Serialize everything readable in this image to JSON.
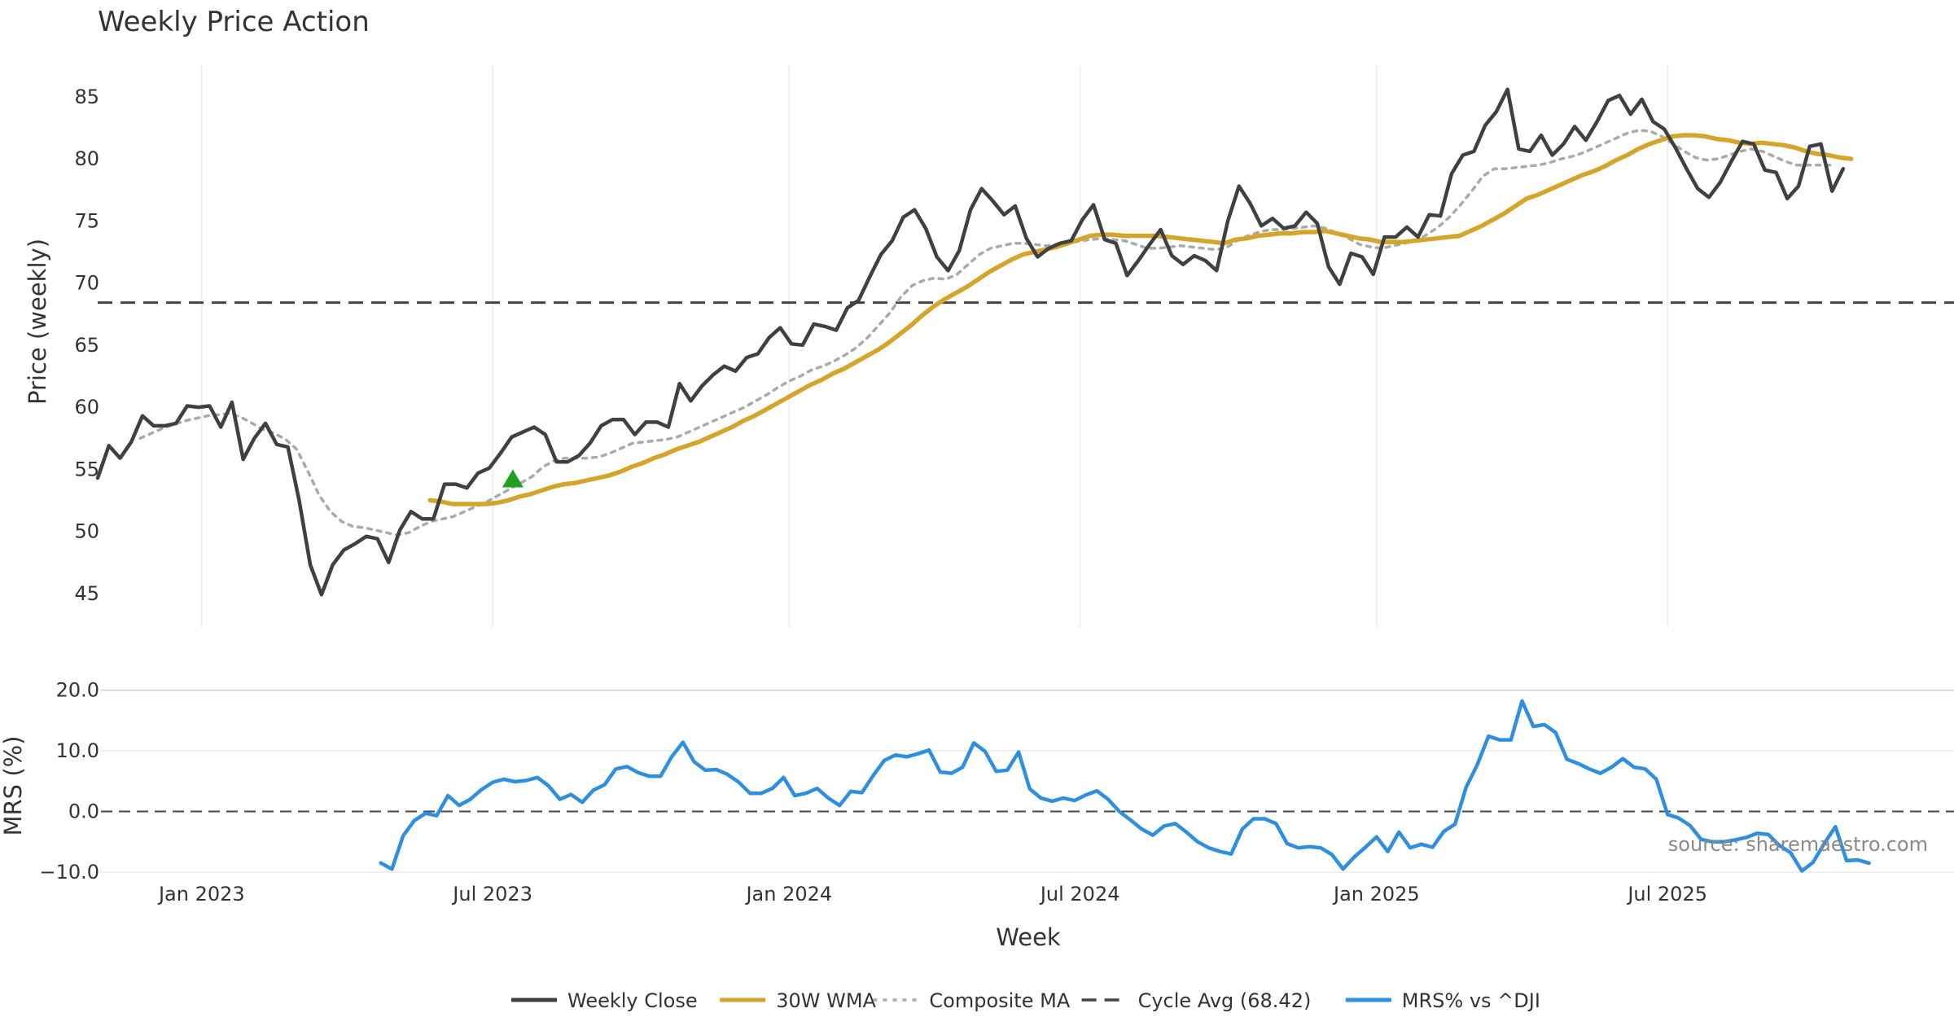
{
  "chart_data": {
    "type": "line",
    "title": "Weekly Price Action",
    "source_note": "source: sharemaestro.com",
    "xlabel": "Week",
    "x_ticks": [
      "Jan 2023",
      "Jul 2023",
      "Jan 2024",
      "Jul 2024",
      "Jan 2025",
      "Jul 2025"
    ],
    "x_tick_weeks": [
      6,
      32,
      58.5,
      84.5,
      111,
      137
    ],
    "x_range_weeks": [
      -3.3,
      162.6
    ],
    "price_panel": {
      "ylabel": "Price (weekly)",
      "ylim": [
        42.3,
        88.2
      ],
      "y_ticks": [
        "45",
        "50",
        "55",
        "60",
        "65",
        "70",
        "75",
        "80",
        "85"
      ],
      "y_tick_values": [
        45,
        50,
        55,
        60,
        65,
        70,
        75,
        80,
        85
      ],
      "series": [
        {
          "name": "Weekly Close",
          "color": "#404040",
          "start_week": -3.3,
          "values": [
            54.3,
            56.9,
            55.9,
            57.2,
            59.3,
            58.5,
            58.5,
            58.7,
            60.1,
            60.0,
            60.1,
            58.4,
            60.4,
            55.8,
            57.5,
            58.7,
            57.0,
            56.8,
            52.5,
            47.3,
            44.9,
            47.3,
            48.5,
            49.0,
            49.6,
            49.4,
            47.5,
            50.1,
            51.6,
            51.0,
            51.0,
            53.8,
            53.8,
            53.5,
            54.7,
            55.1,
            56.3,
            57.6,
            58.0,
            58.4,
            57.8,
            55.6,
            55.6,
            56.1,
            57.1,
            58.5,
            59.0,
            59.0,
            57.8,
            58.8,
            58.8,
            58.4,
            61.9,
            60.5,
            61.7,
            62.6,
            63.3,
            62.9,
            64.0,
            64.3,
            65.6,
            66.4,
            65.1,
            65.0,
            66.7,
            66.5,
            66.2,
            68.0,
            68.6,
            70.5,
            72.3,
            73.4,
            75.3,
            75.9,
            74.4,
            72.1,
            71.0,
            72.6,
            75.9,
            77.6,
            76.6,
            75.5,
            76.2,
            73.6,
            72.1,
            72.8,
            73.2,
            73.4,
            75.1,
            76.3,
            73.5,
            73.2,
            70.6,
            71.8,
            73.1,
            74.3,
            72.2,
            71.5,
            72.2,
            71.8,
            71.0,
            75.0,
            77.8,
            76.4,
            74.6,
            75.2,
            74.4,
            74.6,
            75.7,
            74.8,
            71.3,
            69.9,
            72.4,
            72.1,
            70.7,
            73.7,
            73.7,
            74.5,
            73.7,
            75.5,
            75.4,
            78.8,
            80.3,
            80.6,
            82.7,
            83.8,
            85.6,
            80.8,
            80.6,
            81.9,
            80.3,
            81.2,
            82.6,
            81.5,
            83.0,
            84.7,
            85.1,
            83.6,
            84.8,
            83.0,
            82.4,
            80.9,
            79.2,
            77.6,
            76.9,
            78.1,
            79.8,
            81.4,
            81.2,
            79.1,
            78.9,
            76.8,
            77.8,
            81.0,
            81.2,
            77.4,
            79.2
          ]
        },
        {
          "name": "30W WMA",
          "color": "#D4A52A",
          "start_week": 26.4,
          "values": [
            52.5,
            52.4,
            52.2,
            52.2,
            52.2,
            52.2,
            52.3,
            52.5,
            52.8,
            53.0,
            53.3,
            53.6,
            53.8,
            53.9,
            54.1,
            54.3,
            54.5,
            54.8,
            55.2,
            55.5,
            55.9,
            56.2,
            56.6,
            56.9,
            57.2,
            57.6,
            58.0,
            58.4,
            58.9,
            59.3,
            59.8,
            60.3,
            60.8,
            61.3,
            61.8,
            62.2,
            62.7,
            63.1,
            63.6,
            64.1,
            64.6,
            65.2,
            65.9,
            66.6,
            67.4,
            68.1,
            68.7,
            69.2,
            69.7,
            70.3,
            70.9,
            71.4,
            71.9,
            72.3,
            72.5,
            72.7,
            72.9,
            73.2,
            73.5,
            73.8,
            73.9,
            73.9,
            73.8,
            73.8,
            73.8,
            73.8,
            73.7,
            73.6,
            73.5,
            73.4,
            73.3,
            73.2,
            73.5,
            73.6,
            73.8,
            73.9,
            74.0,
            74.0,
            74.1,
            74.1,
            74.2,
            74.0,
            73.8,
            73.6,
            73.5,
            73.3,
            73.3,
            73.3,
            73.4,
            73.5,
            73.6,
            73.7,
            73.8,
            74.2,
            74.6,
            75.1,
            75.6,
            76.2,
            76.8,
            77.1,
            77.5,
            77.9,
            78.3,
            78.7,
            79.0,
            79.4,
            79.9,
            80.3,
            80.8,
            81.2,
            81.5,
            81.8,
            81.9,
            81.9,
            81.8,
            81.6,
            81.5,
            81.3,
            81.2,
            81.3,
            81.2,
            81.1,
            80.9,
            80.6,
            80.4,
            80.3,
            80.1,
            80.0
          ]
        },
        {
          "name": "Composite MA",
          "color": "#AAAAAA",
          "start_week": 0.5,
          "values": [
            57.5,
            57.9,
            58.3,
            58.6,
            58.9,
            59.1,
            59.3,
            59.4,
            59.5,
            59.2,
            58.7,
            58.2,
            57.9,
            57.4,
            56.6,
            54.8,
            52.9,
            51.6,
            50.8,
            50.4,
            50.3,
            50.1,
            49.9,
            49.7,
            49.9,
            50.4,
            50.8,
            51.0,
            51.2,
            51.6,
            52.0,
            52.4,
            52.9,
            53.4,
            53.9,
            54.4,
            55.2,
            55.7,
            55.9,
            55.9,
            55.9,
            56.0,
            56.3,
            56.7,
            57.1,
            57.2,
            57.3,
            57.4,
            57.6,
            58.0,
            58.4,
            58.8,
            59.2,
            59.6,
            60.0,
            60.5,
            61.0,
            61.6,
            62.1,
            62.5,
            63.0,
            63.3,
            63.7,
            64.2,
            64.8,
            65.6,
            66.6,
            67.6,
            68.9,
            69.8,
            70.2,
            70.4,
            70.3,
            70.7,
            71.5,
            72.3,
            72.8,
            73.0,
            73.2,
            73.2,
            73.1,
            73.0,
            73.1,
            73.2,
            73.4,
            73.5,
            73.6,
            73.5,
            73.4,
            73.1,
            72.8,
            72.8,
            72.9,
            73.0,
            72.9,
            72.8,
            72.7,
            72.8,
            73.4,
            73.8,
            74.1,
            74.3,
            74.3,
            74.4,
            74.5,
            74.6,
            74.4,
            74.0,
            73.6,
            73.1,
            72.9,
            72.8,
            73.0,
            73.2,
            73.4,
            73.9,
            74.5,
            75.3,
            76.3,
            77.4,
            78.6,
            79.2,
            79.2,
            79.3,
            79.4,
            79.5,
            79.7,
            80.0,
            80.2,
            80.5,
            80.9,
            81.3,
            81.7,
            82.1,
            82.3,
            82.2,
            81.8,
            81.2,
            80.6,
            80.1,
            79.9,
            80.0,
            80.3,
            80.6,
            80.8,
            80.6,
            80.2,
            79.8,
            79.5,
            79.5,
            79.5,
            79.5
          ]
        },
        {
          "name": "Cycle Avg (68.42)",
          "color": "#444444",
          "constant": 68.42
        }
      ],
      "annotations": [
        {
          "type": "marker-up",
          "label": "",
          "week": 33.8,
          "value": 54.2,
          "color": "#1FA01F"
        }
      ]
    },
    "mrs_panel": {
      "ylabel": "MRS (%)",
      "ylim": [
        -11.2,
        21.0
      ],
      "y_ticks": [
        "20.0",
        "10.0",
        "0.0",
        "−10.0"
      ],
      "y_tick_values": [
        20,
        10,
        0,
        -10
      ],
      "zero_line": 0,
      "series": [
        {
          "name": "MRS% vs ^DJI",
          "color": "#2E8FE0",
          "start_week": 22.0,
          "values": [
            -8.5,
            -9.5,
            -4.0,
            -1.5,
            -0.3,
            -0.7,
            2.6,
            1.0,
            2.0,
            3.6,
            4.8,
            5.3,
            4.9,
            5.1,
            5.6,
            4.2,
            2.0,
            2.8,
            1.5,
            3.5,
            4.4,
            7.0,
            7.4,
            6.4,
            5.8,
            5.8,
            9.0,
            11.4,
            8.2,
            6.8,
            6.9,
            6.1,
            4.8,
            3.0,
            3.0,
            3.8,
            5.6,
            2.6,
            3.0,
            3.8,
            2.2,
            1.0,
            3.3,
            3.1,
            5.9,
            8.4,
            9.3,
            9.0,
            9.5,
            10.1,
            6.5,
            6.3,
            7.3,
            11.3,
            9.9,
            6.6,
            6.8,
            9.8,
            3.7,
            2.2,
            1.7,
            2.2,
            1.8,
            2.7,
            3.4,
            2.0,
            0.0,
            -1.4,
            -2.9,
            -3.9,
            -2.4,
            -2.0,
            -3.4,
            -5.0,
            -6.0,
            -6.6,
            -7.0,
            -2.9,
            -1.2,
            -1.2,
            -2.0,
            -5.3,
            -6.0,
            -5.8,
            -6.0,
            -7.1,
            -9.5,
            -7.5,
            -5.9,
            -4.2,
            -6.6,
            -3.4,
            -6.0,
            -5.4,
            -5.9,
            -3.3,
            -2.1,
            4.0,
            7.7,
            12.4,
            11.8,
            11.8,
            18.2,
            14.0,
            14.3,
            13.0,
            8.6,
            7.9,
            7.0,
            6.3,
            7.3,
            8.7,
            7.3,
            7.0,
            5.3,
            -0.5,
            -1.1,
            -2.3,
            -4.6,
            -5.0,
            -5.0,
            -4.7,
            -4.3,
            -3.6,
            -3.8,
            -5.6,
            -6.8,
            -9.8,
            -8.4,
            -5.3,
            -2.5,
            -8.1,
            -8.0,
            -8.5
          ]
        }
      ]
    },
    "legend": {
      "placement": "bottom-center",
      "entries": [
        {
          "label": "Weekly Close",
          "style": "solid",
          "color": "#404040"
        },
        {
          "label": "30W WMA",
          "style": "solid",
          "color": "#D4A52A"
        },
        {
          "label": "Composite MA",
          "style": "dotted",
          "color": "#AAAAAA"
        },
        {
          "label": "Cycle Avg (68.42)",
          "style": "dashed",
          "color": "#444444"
        },
        {
          "label": "MRS% vs ^DJI",
          "style": "solid",
          "color": "#2E8FE0"
        }
      ]
    }
  }
}
